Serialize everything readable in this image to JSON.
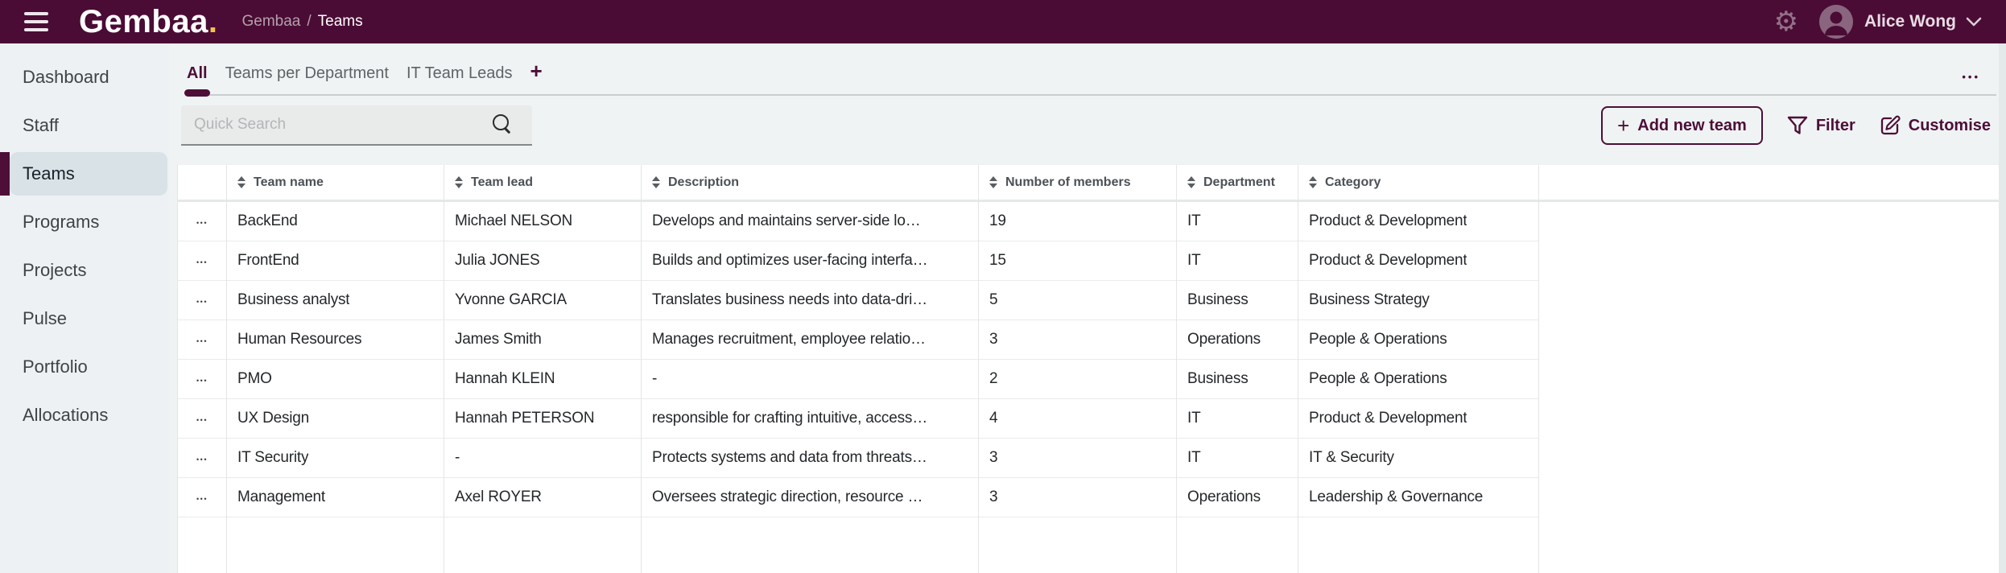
{
  "topbar": {
    "logo_text": "Gembaa",
    "logo_dot": ".",
    "breadcrumb": {
      "root": "Gembaa",
      "separator": "/",
      "current": "Teams"
    },
    "user": {
      "name": "Alice Wong"
    }
  },
  "sidebar": {
    "items": [
      {
        "label": "Dashboard",
        "active": false
      },
      {
        "label": "Staff",
        "active": false
      },
      {
        "label": "Teams",
        "active": true
      },
      {
        "label": "Programs",
        "active": false
      },
      {
        "label": "Projects",
        "active": false
      },
      {
        "label": "Pulse",
        "active": false
      },
      {
        "label": "Portfolio",
        "active": false
      },
      {
        "label": "Allocations",
        "active": false
      }
    ]
  },
  "tabs": {
    "items": [
      {
        "label": "All",
        "active": true
      },
      {
        "label": "Teams per Department",
        "active": false
      },
      {
        "label": "IT Team Leads",
        "active": false
      }
    ],
    "add_tab_icon": "+",
    "overflow_icon": "•••"
  },
  "toolbar": {
    "search": {
      "placeholder": "Quick Search"
    },
    "add_button": {
      "icon": "+",
      "label": "Add new team"
    },
    "filter_button": {
      "label": "Filter"
    },
    "customise_button": {
      "label": "Customise"
    }
  },
  "table": {
    "columns": [
      {
        "label": "Team name"
      },
      {
        "label": "Team lead"
      },
      {
        "label": "Description"
      },
      {
        "label": "Number of members"
      },
      {
        "label": "Department"
      },
      {
        "label": "Category"
      }
    ],
    "row_menu_icon": "•••",
    "rows": [
      {
        "team_name": "BackEnd",
        "team_lead": "Michael NELSON",
        "description": "Develops and maintains server-side lo…",
        "members": "19",
        "department": "IT",
        "category": "Product & Development"
      },
      {
        "team_name": "FrontEnd",
        "team_lead": "Julia JONES",
        "description": "Builds and optimizes user-facing interfa…",
        "members": "15",
        "department": "IT",
        "category": "Product & Development"
      },
      {
        "team_name": "Business analyst",
        "team_lead": "Yvonne GARCIA",
        "description": "Translates business needs into data-dri…",
        "members": "5",
        "department": "Business",
        "category": "Business Strategy"
      },
      {
        "team_name": "Human Resources",
        "team_lead": "James Smith",
        "description": "Manages recruitment, employee relatio…",
        "members": "3",
        "department": "Operations",
        "category": "People & Operations"
      },
      {
        "team_name": "PMO",
        "team_lead": "Hannah KLEIN",
        "description": "-",
        "members": "2",
        "department": "Business",
        "category": "People & Operations"
      },
      {
        "team_name": "UX Design",
        "team_lead": "Hannah PETERSON",
        "description": "responsible for crafting intuitive, access…",
        "members": "4",
        "department": "IT",
        "category": "Product & Development"
      },
      {
        "team_name": "IT Security",
        "team_lead": "-",
        "description": "Protects systems and data from threats…",
        "members": "3",
        "department": "IT",
        "category": "IT & Security"
      },
      {
        "team_name": "Management",
        "team_lead": "Axel ROYER",
        "description": "Oversees strategic direction, resource …",
        "members": "3",
        "department": "Operations",
        "category": "Leadership & Governance"
      }
    ]
  },
  "colors": {
    "accent": "#4d0e37",
    "topbar-bg": "#4a0c34",
    "logo-dot": "#f2c24e"
  }
}
